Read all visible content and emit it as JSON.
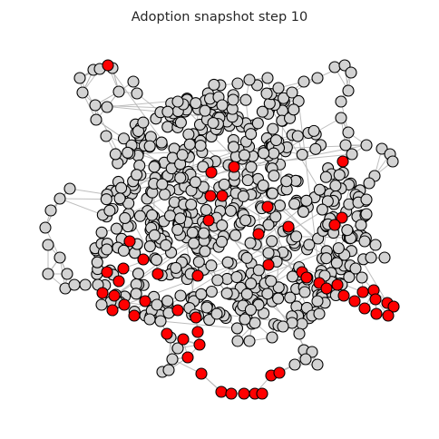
{
  "title": "Adoption snapshot step 10",
  "colors": {
    "background": "#ffffff",
    "adopted": "#ff0000",
    "not_adopted": "#d3d3d3",
    "node_outline": "#000000",
    "edge": "#b3b3b3",
    "title_text": "#262626"
  }
}
